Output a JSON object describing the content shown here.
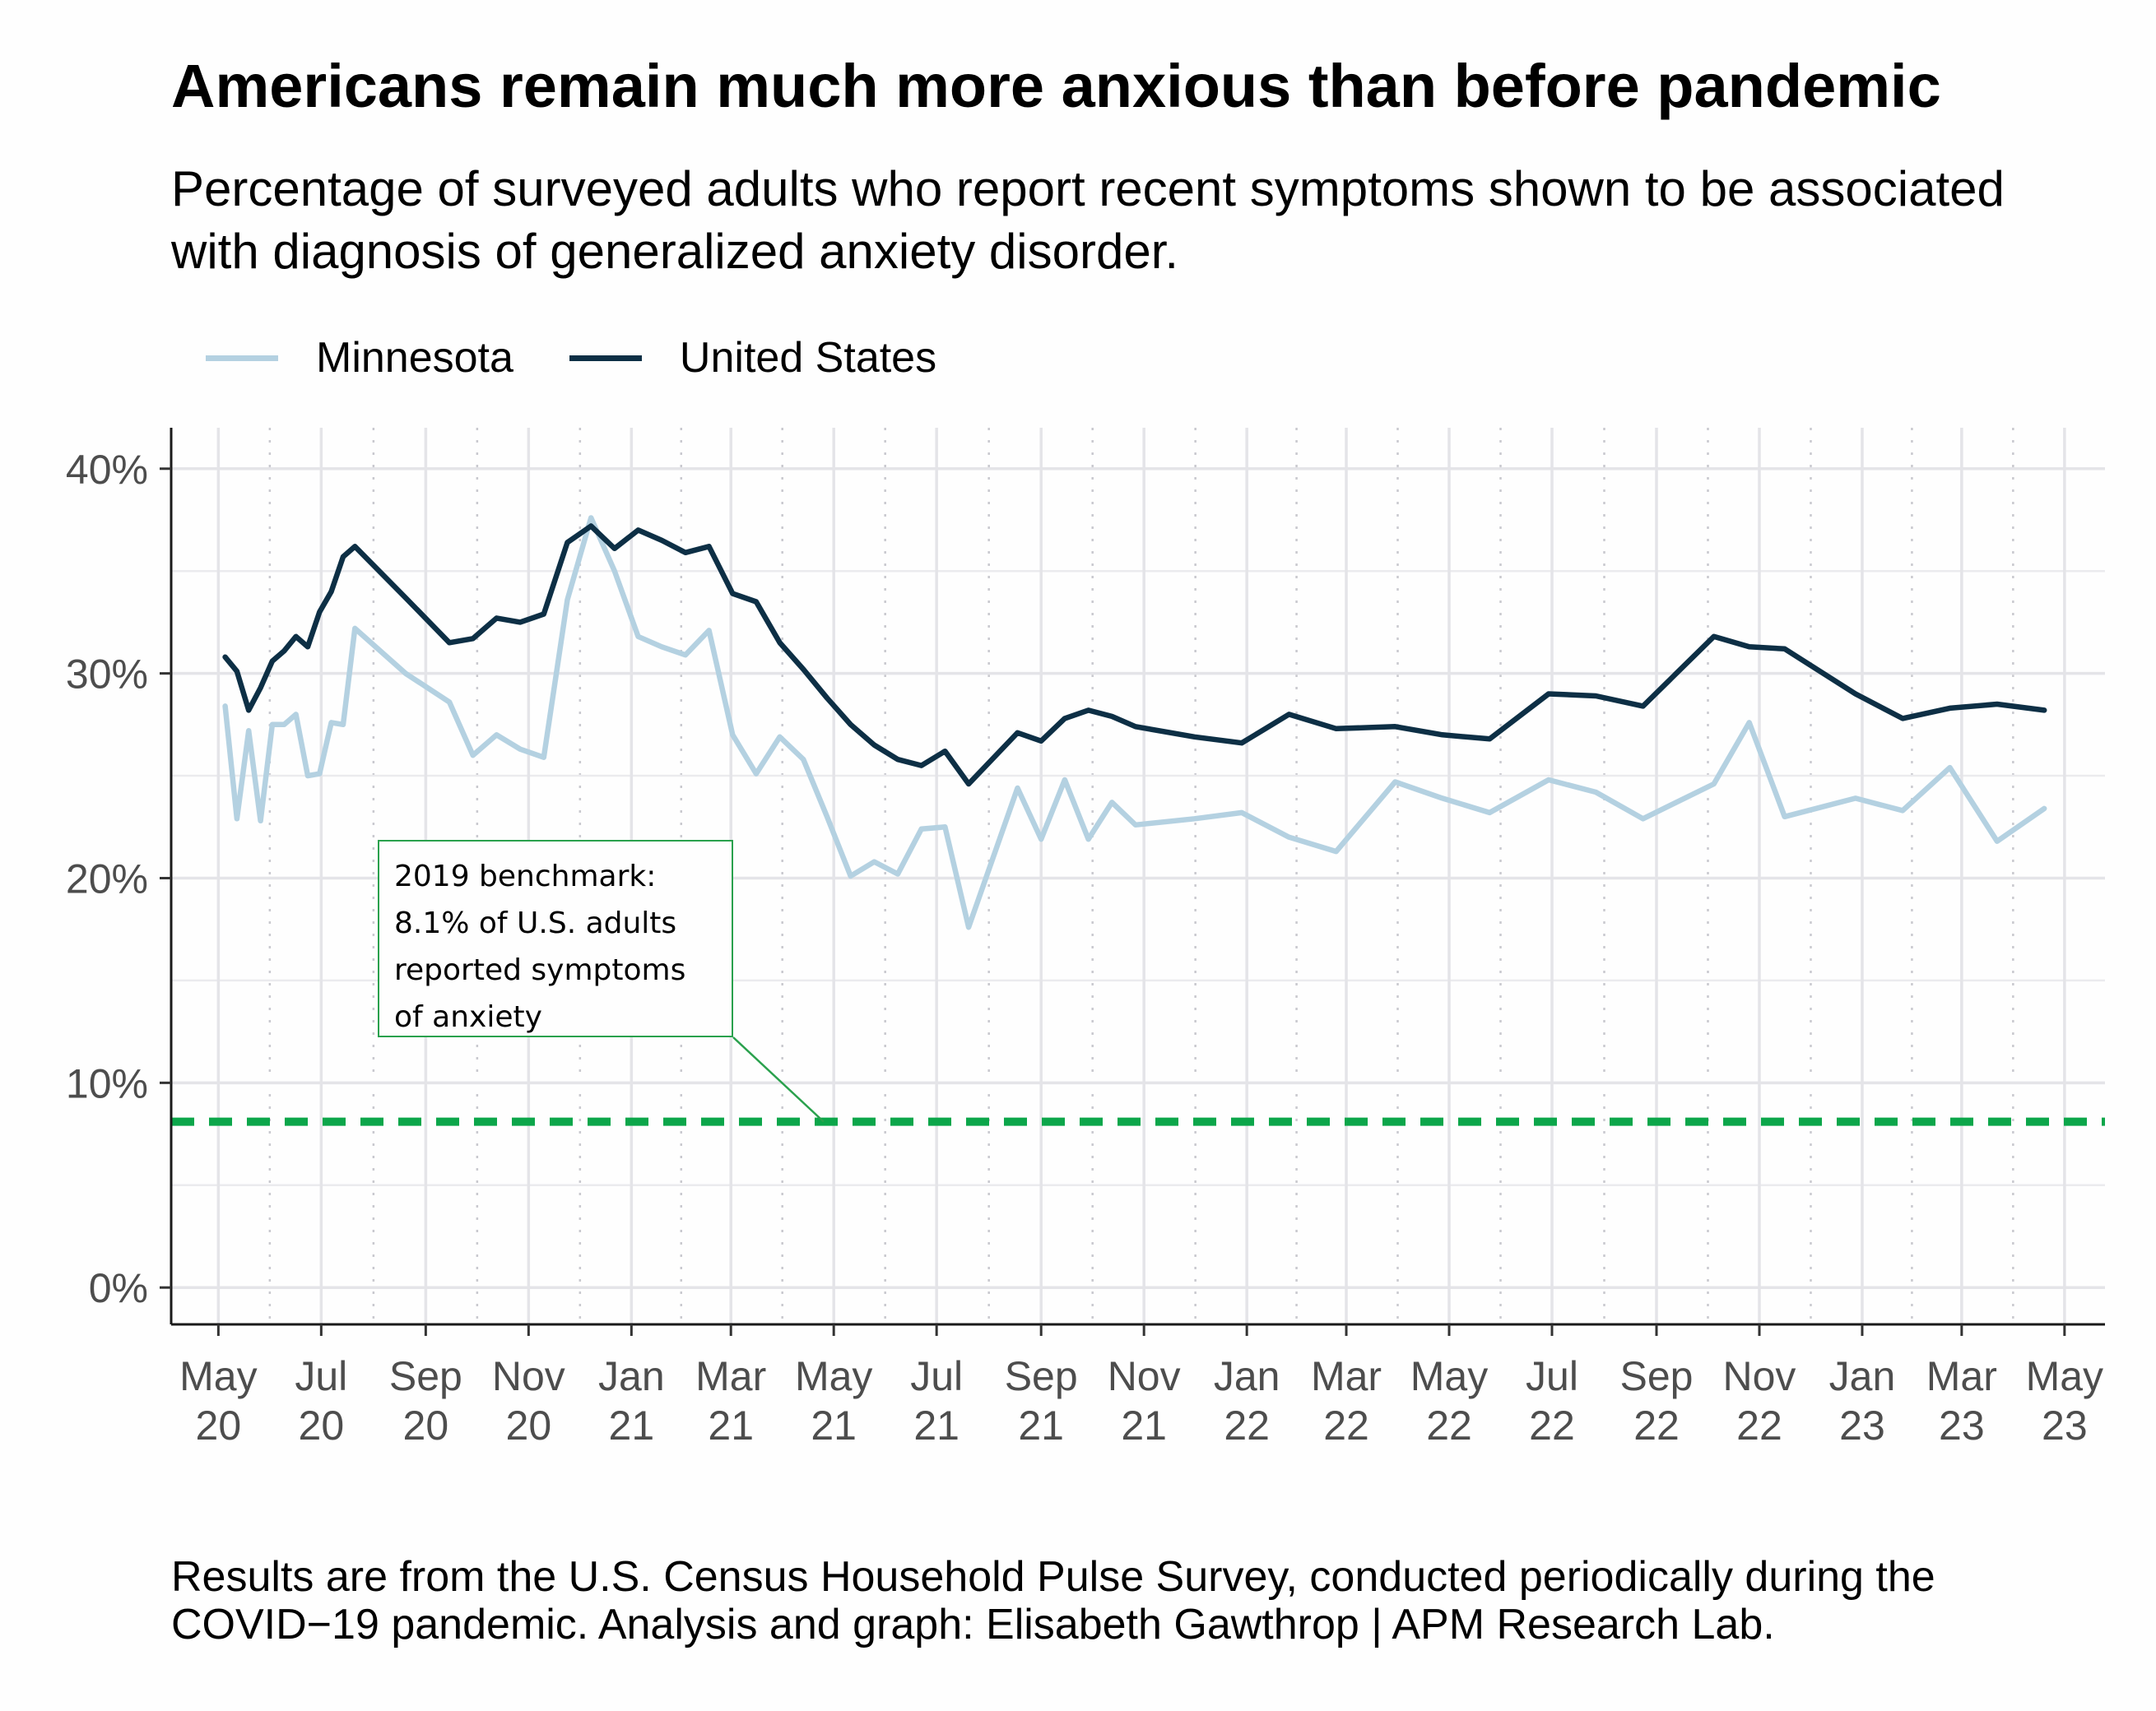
{
  "title": "Americans remain much more anxious than before pandemic",
  "subtitle": "Percentage of surveyed adults who report recent symptoms shown to be associated with diagnosis of generalized anxiety disorder.",
  "caption": "Results are from the U.S. Census Household Pulse Survey, conducted periodically during the COVID−19 pandemic. Analysis and graph: Elisabeth Gawthrop | APM Research Lab.",
  "annotation_lines": [
    "2019 benchmark:",
    "8.1% of U.S. adults",
    "reported symptoms",
    "of anxiety"
  ],
  "colors": {
    "minnesota": "#b4d1e1",
    "united_states": "#0d2f45",
    "benchmark": "#0ca64a",
    "annotation_border": "#2aa14d"
  },
  "chart_data": {
    "type": "line",
    "title": "Americans remain much more anxious than before pandemic",
    "xlabel": "",
    "ylabel": "",
    "ylim": [
      -1.8,
      42
    ],
    "xlim": [
      "2020-04-03",
      "2023-05-25"
    ],
    "grid": true,
    "legend_position": "top-left",
    "y_ticks": [
      {
        "value": 0,
        "label": "0%"
      },
      {
        "value": 10,
        "label": "10%"
      },
      {
        "value": 20,
        "label": "20%"
      },
      {
        "value": 30,
        "label": "30%"
      },
      {
        "value": 40,
        "label": "40%"
      }
    ],
    "x_ticks": [
      {
        "date": "2020-05-01",
        "label": [
          "May",
          "20"
        ]
      },
      {
        "date": "2020-07-01",
        "label": [
          "Jul",
          "20"
        ]
      },
      {
        "date": "2020-09-01",
        "label": [
          "Sep",
          "20"
        ]
      },
      {
        "date": "2020-11-01",
        "label": [
          "Nov",
          "20"
        ]
      },
      {
        "date": "2021-01-01",
        "label": [
          "Jan",
          "21"
        ]
      },
      {
        "date": "2021-03-01",
        "label": [
          "Mar",
          "21"
        ]
      },
      {
        "date": "2021-05-01",
        "label": [
          "May",
          "21"
        ]
      },
      {
        "date": "2021-07-01",
        "label": [
          "Jul",
          "21"
        ]
      },
      {
        "date": "2021-09-01",
        "label": [
          "Sep",
          "21"
        ]
      },
      {
        "date": "2021-11-01",
        "label": [
          "Nov",
          "21"
        ]
      },
      {
        "date": "2022-01-01",
        "label": [
          "Jan",
          "22"
        ]
      },
      {
        "date": "2022-03-01",
        "label": [
          "Mar",
          "22"
        ]
      },
      {
        "date": "2022-05-01",
        "label": [
          "May",
          "22"
        ]
      },
      {
        "date": "2022-07-01",
        "label": [
          "Jul",
          "22"
        ]
      },
      {
        "date": "2022-09-01",
        "label": [
          "Sep",
          "22"
        ]
      },
      {
        "date": "2022-11-01",
        "label": [
          "Nov",
          "22"
        ]
      },
      {
        "date": "2023-01-01",
        "label": [
          "Jan",
          "23"
        ]
      },
      {
        "date": "2023-03-01",
        "label": [
          "Mar",
          "23"
        ]
      },
      {
        "date": "2023-05-01",
        "label": [
          "May",
          "23"
        ]
      }
    ],
    "reference_line": {
      "value": 8.1,
      "style": "dashed",
      "label": "2019 benchmark",
      "annotation_date": "2021-04-25"
    },
    "series": [
      {
        "name": "Minnesota",
        "points": [
          [
            "2020-05-05",
            28.4
          ],
          [
            "2020-05-12",
            22.9
          ],
          [
            "2020-05-19",
            27.2
          ],
          [
            "2020-05-26",
            22.8
          ],
          [
            "2020-06-02",
            27.5
          ],
          [
            "2020-06-09",
            27.5
          ],
          [
            "2020-06-16",
            28.0
          ],
          [
            "2020-06-23",
            25.0
          ],
          [
            "2020-06-30",
            25.1
          ],
          [
            "2020-07-07",
            27.6
          ],
          [
            "2020-07-14",
            27.5
          ],
          [
            "2020-07-21",
            32.2
          ],
          [
            "2020-08-20",
            30.0
          ],
          [
            "2020-09-15",
            28.6
          ],
          [
            "2020-09-29",
            26.0
          ],
          [
            "2020-10-13",
            27.0
          ],
          [
            "2020-10-27",
            26.3
          ],
          [
            "2020-11-10",
            25.9
          ],
          [
            "2020-11-24",
            33.6
          ],
          [
            "2020-12-08",
            37.6
          ],
          [
            "2020-12-22",
            35.0
          ],
          [
            "2021-01-05",
            31.8
          ],
          [
            "2021-01-19",
            31.3
          ],
          [
            "2021-02-02",
            30.9
          ],
          [
            "2021-02-16",
            32.1
          ],
          [
            "2021-03-02",
            27.0
          ],
          [
            "2021-03-16",
            25.1
          ],
          [
            "2021-03-30",
            26.9
          ],
          [
            "2021-04-13",
            25.8
          ],
          [
            "2021-04-27",
            23.0
          ],
          [
            "2021-05-11",
            20.1
          ],
          [
            "2021-05-25",
            20.8
          ],
          [
            "2021-06-08",
            20.2
          ],
          [
            "2021-06-22",
            22.4
          ],
          [
            "2021-07-06",
            22.5
          ],
          [
            "2021-07-20",
            17.6
          ],
          [
            "2021-08-18",
            24.4
          ],
          [
            "2021-09-01",
            21.9
          ],
          [
            "2021-09-15",
            24.8
          ],
          [
            "2021-09-29",
            21.9
          ],
          [
            "2021-10-13",
            23.7
          ],
          [
            "2021-10-27",
            22.6
          ],
          [
            "2021-12-01",
            22.9
          ],
          [
            "2021-12-29",
            23.2
          ],
          [
            "2022-01-26",
            22.0
          ],
          [
            "2022-02-23",
            21.3
          ],
          [
            "2022-03-30",
            24.7
          ],
          [
            "2022-04-27",
            23.9
          ],
          [
            "2022-05-25",
            23.2
          ],
          [
            "2022-06-29",
            24.8
          ],
          [
            "2022-07-27",
            24.2
          ],
          [
            "2022-08-24",
            22.9
          ],
          [
            "2022-10-05",
            24.6
          ],
          [
            "2022-10-26",
            27.6
          ],
          [
            "2022-11-16",
            23.0
          ],
          [
            "2022-12-28",
            23.9
          ],
          [
            "2023-01-25",
            23.3
          ],
          [
            "2023-02-22",
            25.4
          ],
          [
            "2023-03-22",
            21.8
          ],
          [
            "2023-04-19",
            23.4
          ]
        ]
      },
      {
        "name": "United States",
        "points": [
          [
            "2020-05-05",
            30.8
          ],
          [
            "2020-05-12",
            30.1
          ],
          [
            "2020-05-19",
            28.2
          ],
          [
            "2020-05-26",
            29.3
          ],
          [
            "2020-06-02",
            30.6
          ],
          [
            "2020-06-09",
            31.1
          ],
          [
            "2020-06-16",
            31.8
          ],
          [
            "2020-06-23",
            31.3
          ],
          [
            "2020-06-30",
            33.0
          ],
          [
            "2020-07-07",
            34.0
          ],
          [
            "2020-07-14",
            35.7
          ],
          [
            "2020-07-21",
            36.2
          ],
          [
            "2020-08-20",
            33.7
          ],
          [
            "2020-09-15",
            31.5
          ],
          [
            "2020-09-29",
            31.7
          ],
          [
            "2020-10-13",
            32.7
          ],
          [
            "2020-10-27",
            32.5
          ],
          [
            "2020-11-10",
            32.9
          ],
          [
            "2020-11-24",
            36.4
          ],
          [
            "2020-12-08",
            37.2
          ],
          [
            "2020-12-22",
            36.1
          ],
          [
            "2021-01-05",
            37.0
          ],
          [
            "2021-01-19",
            36.5
          ],
          [
            "2021-02-02",
            35.9
          ],
          [
            "2021-02-16",
            36.2
          ],
          [
            "2021-03-02",
            33.9
          ],
          [
            "2021-03-16",
            33.5
          ],
          [
            "2021-03-30",
            31.5
          ],
          [
            "2021-04-13",
            30.2
          ],
          [
            "2021-04-27",
            28.8
          ],
          [
            "2021-05-11",
            27.5
          ],
          [
            "2021-05-25",
            26.5
          ],
          [
            "2021-06-08",
            25.8
          ],
          [
            "2021-06-22",
            25.5
          ],
          [
            "2021-07-06",
            26.2
          ],
          [
            "2021-07-20",
            24.6
          ],
          [
            "2021-08-18",
            27.1
          ],
          [
            "2021-09-01",
            26.7
          ],
          [
            "2021-09-15",
            27.8
          ],
          [
            "2021-09-29",
            28.2
          ],
          [
            "2021-10-13",
            27.9
          ],
          [
            "2021-10-27",
            27.4
          ],
          [
            "2021-12-01",
            26.9
          ],
          [
            "2021-12-29",
            26.6
          ],
          [
            "2022-01-26",
            28.0
          ],
          [
            "2022-02-23",
            27.3
          ],
          [
            "2022-03-30",
            27.4
          ],
          [
            "2022-04-27",
            27.0
          ],
          [
            "2022-05-25",
            26.8
          ],
          [
            "2022-06-29",
            29.0
          ],
          [
            "2022-07-27",
            28.9
          ],
          [
            "2022-08-24",
            28.4
          ],
          [
            "2022-10-05",
            31.8
          ],
          [
            "2022-10-26",
            31.3
          ],
          [
            "2022-11-16",
            31.2
          ],
          [
            "2022-12-28",
            29.0
          ],
          [
            "2023-01-25",
            27.8
          ],
          [
            "2023-02-22",
            28.3
          ],
          [
            "2023-03-22",
            28.5
          ],
          [
            "2023-04-19",
            28.2
          ]
        ]
      }
    ]
  }
}
